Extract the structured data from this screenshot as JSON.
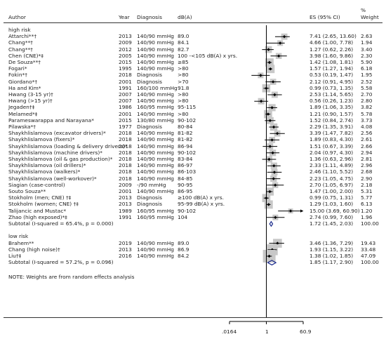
{
  "header": {
    "author": "Author",
    "year": "Year",
    "diagnosis": "Diagnosis",
    "dba": "dB(A)",
    "es": "ES (95% CI)",
    "pct_top": "%",
    "pct_bottom": "Weight"
  },
  "axis": {
    "left_tick": ".0164",
    "center_tick": "1",
    "right_tick": "60.9"
  },
  "note": "NOTE: Weights are from random effects analysis",
  "chart_data": {
    "type": "forest",
    "scale": "log",
    "xlim": [
      0.0164,
      60.9
    ],
    "reference_line": 1,
    "groups": [
      {
        "label": "high risk",
        "rows": [
          {
            "author": "Attarchi**†",
            "year": "2013",
            "diagnosis": "140/90 mmHg",
            "dba": "89.0",
            "es": 7.41,
            "lo": 2.65,
            "hi": 13.6,
            "es_text": "7.41 (2.65, 13.60)",
            "weight": "2.63"
          },
          {
            "author": "Chang**†",
            "year": "2009",
            "diagnosis": "140/90 mmHg",
            "dba": "84.1",
            "es": 4.66,
            "lo": 1.0,
            "hi": 7.78,
            "es_text": "4.66 (1.00, 7.78)",
            "weight": "1.94"
          },
          {
            "author": "Chang**†",
            "year": "2012",
            "diagnosis": "140/90 mmHg",
            "dba": "82.7",
            "es": 1.27,
            "lo": 0.62,
            "hi": 2.26,
            "es_text": "1.27 (0.62, 2.26)",
            "weight": "3.40"
          },
          {
            "author": "Chen (CNE)*‡",
            "year": "2005",
            "diagnosis": "140/90 mmHg",
            "dba": "100 -<105 dB(A) x yrs.",
            "es": 3.98,
            "lo": 1.6,
            "hi": 9.86,
            "es_text": "3.98 (1.60, 9.86)",
            "weight": "2.30"
          },
          {
            "author": "De Souza**†",
            "year": "2015",
            "diagnosis": "140/90 mmHg",
            "dba": "≥85",
            "es": 1.42,
            "lo": 1.08,
            "hi": 1.81,
            "es_text": "1.42 (1.08, 1.81)",
            "weight": "5.90"
          },
          {
            "author": "Fogari*",
            "year": "1995",
            "diagnosis": "140/90 mmHg",
            "dba": ">80",
            "es": 1.57,
            "lo": 1.27,
            "hi": 1.94,
            "es_text": "1.57 (1.27, 1.94)",
            "weight": "6.18"
          },
          {
            "author": "Fokin*†",
            "year": "2018",
            "diagnosis": "Diagnosis",
            "dba": ">80",
            "es": 0.53,
            "lo": 0.19,
            "hi": 1.47,
            "es_text": "0.53 (0.19, 1.47)",
            "weight": "1.95"
          },
          {
            "author": "Giordano*†",
            "year": "2001",
            "diagnosis": "Diagnosis",
            "dba": ">70",
            "es": 2.12,
            "lo": 0.91,
            "hi": 4.95,
            "es_text": "2.12 (0.91, 4.95)",
            "weight": "2.52"
          },
          {
            "author": "Ha and Kim*",
            "year": "1991",
            "diagnosis": "160/100 mmHg",
            "dba": "91.8",
            "es": 0.99,
            "lo": 0.73,
            "hi": 1.35,
            "es_text": "0.99 (0.73, 1.35)",
            "weight": "5.58"
          },
          {
            "author": "Hwang (3-15 yr)†",
            "year": "2007",
            "diagnosis": "140/90 mmHg",
            "dba": ">80",
            "es": 2.53,
            "lo": 1.14,
            "hi": 5.65,
            "es_text": "2.53 (1.14, 5.65)",
            "weight": "2.70"
          },
          {
            "author": "Hwang (>15 yr)†",
            "year": "2007",
            "diagnosis": "140/90 mmHg",
            "dba": ">80",
            "es": 0.56,
            "lo": 0.26,
            "hi": 1.23,
            "es_text": "0.56 (0.26, 1.23)",
            "weight": "2.80"
          },
          {
            "author": "Jegaden†‡",
            "year": "1986",
            "diagnosis": "160/95 mmHg",
            "dba": "95-115",
            "es": 1.89,
            "lo": 1.06,
            "hi": 3.35,
            "es_text": "1.89 (1.06, 3.35)",
            "weight": "3.82"
          },
          {
            "author": "Melamed*‡",
            "year": "2001",
            "diagnosis": "140/90 mmHg",
            "dba": ">80",
            "es": 1.21,
            "lo": 0.9,
            "hi": 1.57,
            "es_text": "1.21 (0.90, 1.57)",
            "weight": "5.78"
          },
          {
            "author": "Parameswarappa and Narayana*",
            "year": "2015",
            "diagnosis": "130/80 mmHg",
            "dba": "90-102",
            "es": 1.52,
            "lo": 0.84,
            "hi": 2.74,
            "es_text": "1.52 (0.84, 2.74)",
            "weight": "3.73"
          },
          {
            "author": "Pilawska*†",
            "year": "1977",
            "diagnosis": "Diagnosis",
            "dba": "80-84",
            "es": 2.29,
            "lo": 1.35,
            "hi": 3.91,
            "es_text": "2.29 (1.35, 3.91)",
            "weight": "4.08"
          },
          {
            "author": "Shaykhlislamova (excavator drivers)*",
            "year": "2018",
            "diagnosis": "140/90 mmHg",
            "dba": "81-82",
            "es": 3.39,
            "lo": 1.47,
            "hi": 7.82,
            "es_text": "3.39 (1.47, 7.82)",
            "weight": "2.56"
          },
          {
            "author": "Shaykhlislamova (fixers)*",
            "year": "2018",
            "diagnosis": "140/90 mmHg",
            "dba": "81-82",
            "es": 1.89,
            "lo": 0.83,
            "hi": 4.3,
            "es_text": "1.89 (0.83, 4.30)",
            "weight": "2.61"
          },
          {
            "author": "Shaykhlislamova (loading & delivery drivers)*",
            "year": "2018",
            "diagnosis": "140/90 mmHg",
            "dba": "86-94",
            "es": 1.51,
            "lo": 0.67,
            "hi": 3.39,
            "es_text": "1.51 (0.67, 3.39)",
            "weight": "2.66"
          },
          {
            "author": "Shaykhlislamova (machine drivers)*",
            "year": "2018",
            "diagnosis": "140/90 mmHg",
            "dba": "90-102",
            "es": 2.04,
            "lo": 0.97,
            "hi": 4.3,
            "es_text": "2.04 (0.97, 4.30)",
            "weight": "2.94"
          },
          {
            "author": "Shaykhlislamova (oil & gas production)*",
            "year": "2018",
            "diagnosis": "140/90 mmHg",
            "dba": "83-84",
            "es": 1.36,
            "lo": 0.63,
            "hi": 2.96,
            "es_text": "1.36 (0.63, 2.96)",
            "weight": "2.81"
          },
          {
            "author": "Shaykhlislamova (oil drillers)*",
            "year": "2018",
            "diagnosis": "140/90 mmHg",
            "dba": "86-97",
            "es": 2.33,
            "lo": 1.11,
            "hi": 4.89,
            "es_text": "2.33 (1.11, 4.89)",
            "weight": "2.96"
          },
          {
            "author": "Shaykhlislamova (walkers)*",
            "year": "2018",
            "diagnosis": "140/90 mmHg",
            "dba": "86-103",
            "es": 2.46,
            "lo": 1.1,
            "hi": 5.52,
            "es_text": "2.46 (1.10, 5.52)",
            "weight": "2.68"
          },
          {
            "author": "Shaykhlislamova (well-workover)*",
            "year": "2018",
            "diagnosis": "140/90 mmHg",
            "dba": "84-85",
            "es": 2.23,
            "lo": 1.05,
            "hi": 4.75,
            "es_text": "2.23 (1.05, 4.75)",
            "weight": "2.90"
          },
          {
            "author": "Siagian (case-control)",
            "year": "2009",
            "diagnosis": "-/90 mmHg",
            "dba": "90-95",
            "es": 2.7,
            "lo": 1.05,
            "hi": 6.97,
            "es_text": "2.70 (1.05, 6.97)",
            "weight": "2.18"
          },
          {
            "author": "Souto Souza**",
            "year": "2001",
            "diagnosis": "140/90 mmHg",
            "dba": "86-95",
            "es": 1.47,
            "lo": 1.0,
            "hi": 2.0,
            "es_text": "1.47 (1.00, 2.00)",
            "weight": "5.31"
          },
          {
            "author": "Stokholm (men; CNE) †‡",
            "year": "2013",
            "diagnosis": "Diagnosis",
            "dba": "≥100  dB(A) x yrs.",
            "es": 0.99,
            "lo": 0.75,
            "hi": 1.31,
            "es_text": "0.99 (0.75, 1.31)",
            "weight": "5.77"
          },
          {
            "author": "Stokholm (women; CNE) †‡",
            "year": "2013",
            "diagnosis": "Diagnosis",
            "dba": "95-99  dB(A) x yrs.",
            "es": 1.29,
            "lo": 1.03,
            "hi": 1.6,
            "es_text": "1.29 (1.03, 1.60)",
            "weight": "6.13"
          },
          {
            "author": "Talijancic and Mustac*",
            "year": "1989",
            "diagnosis": "160/95 mmHg",
            "dba": "90-102",
            "es": 15.0,
            "lo": 3.69,
            "hi": 60.9,
            "es_text": "15.00 (3.69, 60.90)",
            "weight": "1.20"
          },
          {
            "author": "Zhao (high exposed)*‡",
            "year": "1991",
            "diagnosis": "160/95 mmHg",
            "dba": "104",
            "es": 2.74,
            "lo": 0.99,
            "hi": 7.6,
            "es_text": "2.74 (0.99, 7.60)",
            "weight": "1.96"
          }
        ],
        "subtotal": {
          "label": "Subtotal  (I-squared = 65.4%, p = 0.000)",
          "es": 1.72,
          "lo": 1.45,
          "hi": 2.03,
          "es_text": "1.72 (1.45, 2.03)",
          "weight": "100.00"
        }
      },
      {
        "label": "low risk",
        "rows": [
          {
            "author": "Brahem**",
            "year": "2019",
            "diagnosis": "140/90 mmHg",
            "dba": "89.0",
            "es": 3.46,
            "lo": 1.36,
            "hi": 7.29,
            "es_text": "3.46 (1.36, 7.29)",
            "weight": "19.43"
          },
          {
            "author": "Chang (high noise)†",
            "year": "2013",
            "diagnosis": "140/90 mmHg",
            "dba": "86.9",
            "es": 1.93,
            "lo": 1.15,
            "hi": 3.22,
            "es_text": "1.93 (1.15, 3.22)",
            "weight": "33.48"
          },
          {
            "author": "Liu†‡",
            "year": "2016",
            "diagnosis": "140/90 mmHg",
            "dba": "84.2",
            "es": 1.38,
            "lo": 1.02,
            "hi": 1.85,
            "es_text": "1.38 (1.02, 1.85)",
            "weight": "47.09"
          }
        ],
        "subtotal": {
          "label": "Subtotal  (I-squared = 57.2%, p = 0.096)",
          "es": 1.85,
          "lo": 1.17,
          "hi": 2.9,
          "es_text": "1.85 (1.17, 2.90)",
          "weight": "100.00"
        }
      }
    ]
  }
}
